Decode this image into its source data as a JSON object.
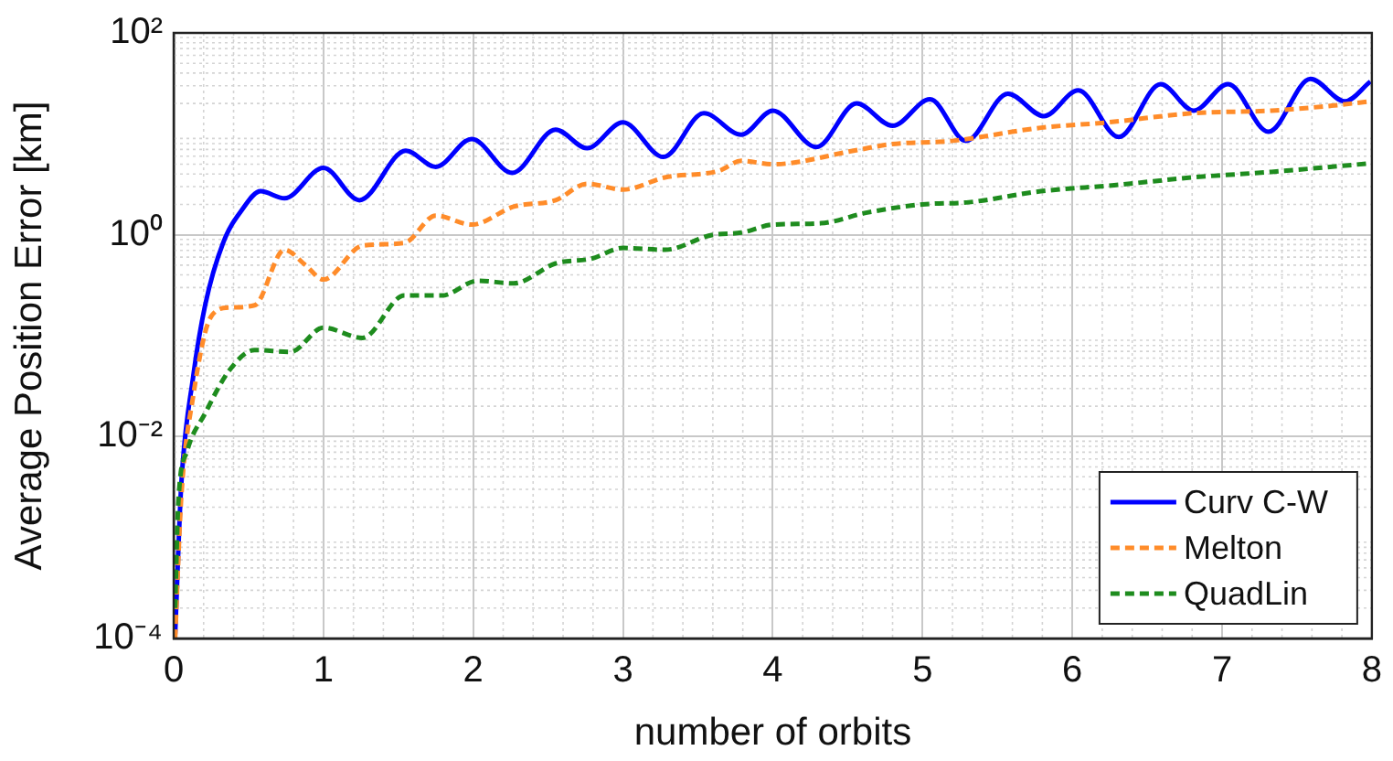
{
  "chart_data": {
    "type": "line",
    "xlabel": "number of orbits",
    "ylabel": "Average Position Error [km]",
    "log": "y",
    "grid": true,
    "legend": "bottom right",
    "marker": "none",
    "xlim": [
      0,
      8
    ],
    "xticks": [
      0,
      1,
      2,
      3,
      4,
      5,
      6,
      7,
      8
    ],
    "ylim": [
      0.0001,
      100
    ],
    "yticks": [
      {
        "value": 0.0001,
        "label": "10⁻⁴"
      },
      {
        "value": 0.01,
        "label": "10⁻²"
      },
      {
        "value": 1,
        "label": "10⁰"
      },
      {
        "value": 100,
        "label": "10²"
      }
    ],
    "series": [
      {
        "name": "Curv C-W",
        "color": "#0000ff",
        "line_style": "solid",
        "x": [
          0.01,
          0.05,
          0.13,
          0.21,
          0.33,
          0.46,
          0.58,
          0.74,
          1.0,
          1.24,
          1.55,
          1.75,
          1.99,
          2.26,
          2.55,
          2.76,
          3.0,
          3.27,
          3.54,
          3.79,
          4.0,
          4.29,
          4.56,
          4.8,
          5.05,
          5.29,
          5.57,
          5.81,
          6.04,
          6.31,
          6.59,
          6.81,
          7.04,
          7.31,
          7.59,
          7.82,
          7.99
        ],
        "values": [
          0.00011,
          0.0032,
          0.039,
          0.2,
          0.83,
          1.8,
          2.7,
          2.3,
          4.6,
          2.2,
          6.8,
          4.7,
          8.9,
          4.1,
          11,
          7.2,
          13,
          5.9,
          16,
          9.8,
          17,
          7.4,
          20,
          12,
          22,
          8.5,
          25,
          15,
          27,
          9.3,
          31,
          17,
          31,
          10.5,
          35,
          21,
          33
        ]
      },
      {
        "name": "Melton",
        "color": "#ff8c2a",
        "line_style": "dashed",
        "x": [
          0.01,
          0.05,
          0.13,
          0.25,
          0.37,
          0.54,
          0.74,
          0.88,
          1.0,
          1.26,
          1.54,
          1.75,
          1.99,
          2.27,
          2.55,
          2.76,
          3.0,
          3.28,
          3.64,
          3.79,
          4.0,
          4.54,
          4.79,
          5.19,
          5.79,
          6.24,
          6.8,
          7.33,
          7.73,
          7.99
        ],
        "values": [
          0.0001,
          0.0024,
          0.025,
          0.155,
          0.19,
          0.2,
          0.71,
          0.5,
          0.36,
          0.78,
          0.83,
          1.55,
          1.26,
          1.9,
          2.2,
          3.2,
          2.8,
          3.7,
          4.3,
          5.4,
          5.0,
          6.8,
          7.9,
          8.5,
          11.5,
          13,
          16,
          17,
          19,
          21
        ]
      },
      {
        "name": "QuadLin",
        "color": "#1e8c1e",
        "line_style": "dashed",
        "x": [
          0.01,
          0.03,
          0.09,
          0.21,
          0.37,
          0.54,
          0.78,
          1.0,
          1.26,
          1.54,
          1.79,
          2.03,
          2.27,
          2.55,
          2.79,
          3.0,
          3.28,
          3.6,
          3.79,
          4.0,
          4.32,
          4.63,
          5.0,
          5.31,
          5.79,
          6.28,
          6.8,
          7.33,
          7.99
        ],
        "values": [
          0.0002,
          0.0021,
          0.0072,
          0.017,
          0.045,
          0.072,
          0.069,
          0.12,
          0.095,
          0.25,
          0.25,
          0.35,
          0.33,
          0.52,
          0.58,
          0.74,
          0.71,
          1.0,
          1.05,
          1.26,
          1.3,
          1.66,
          2.0,
          2.1,
          2.7,
          3.1,
          3.7,
          4.2,
          5.1
        ]
      }
    ]
  }
}
